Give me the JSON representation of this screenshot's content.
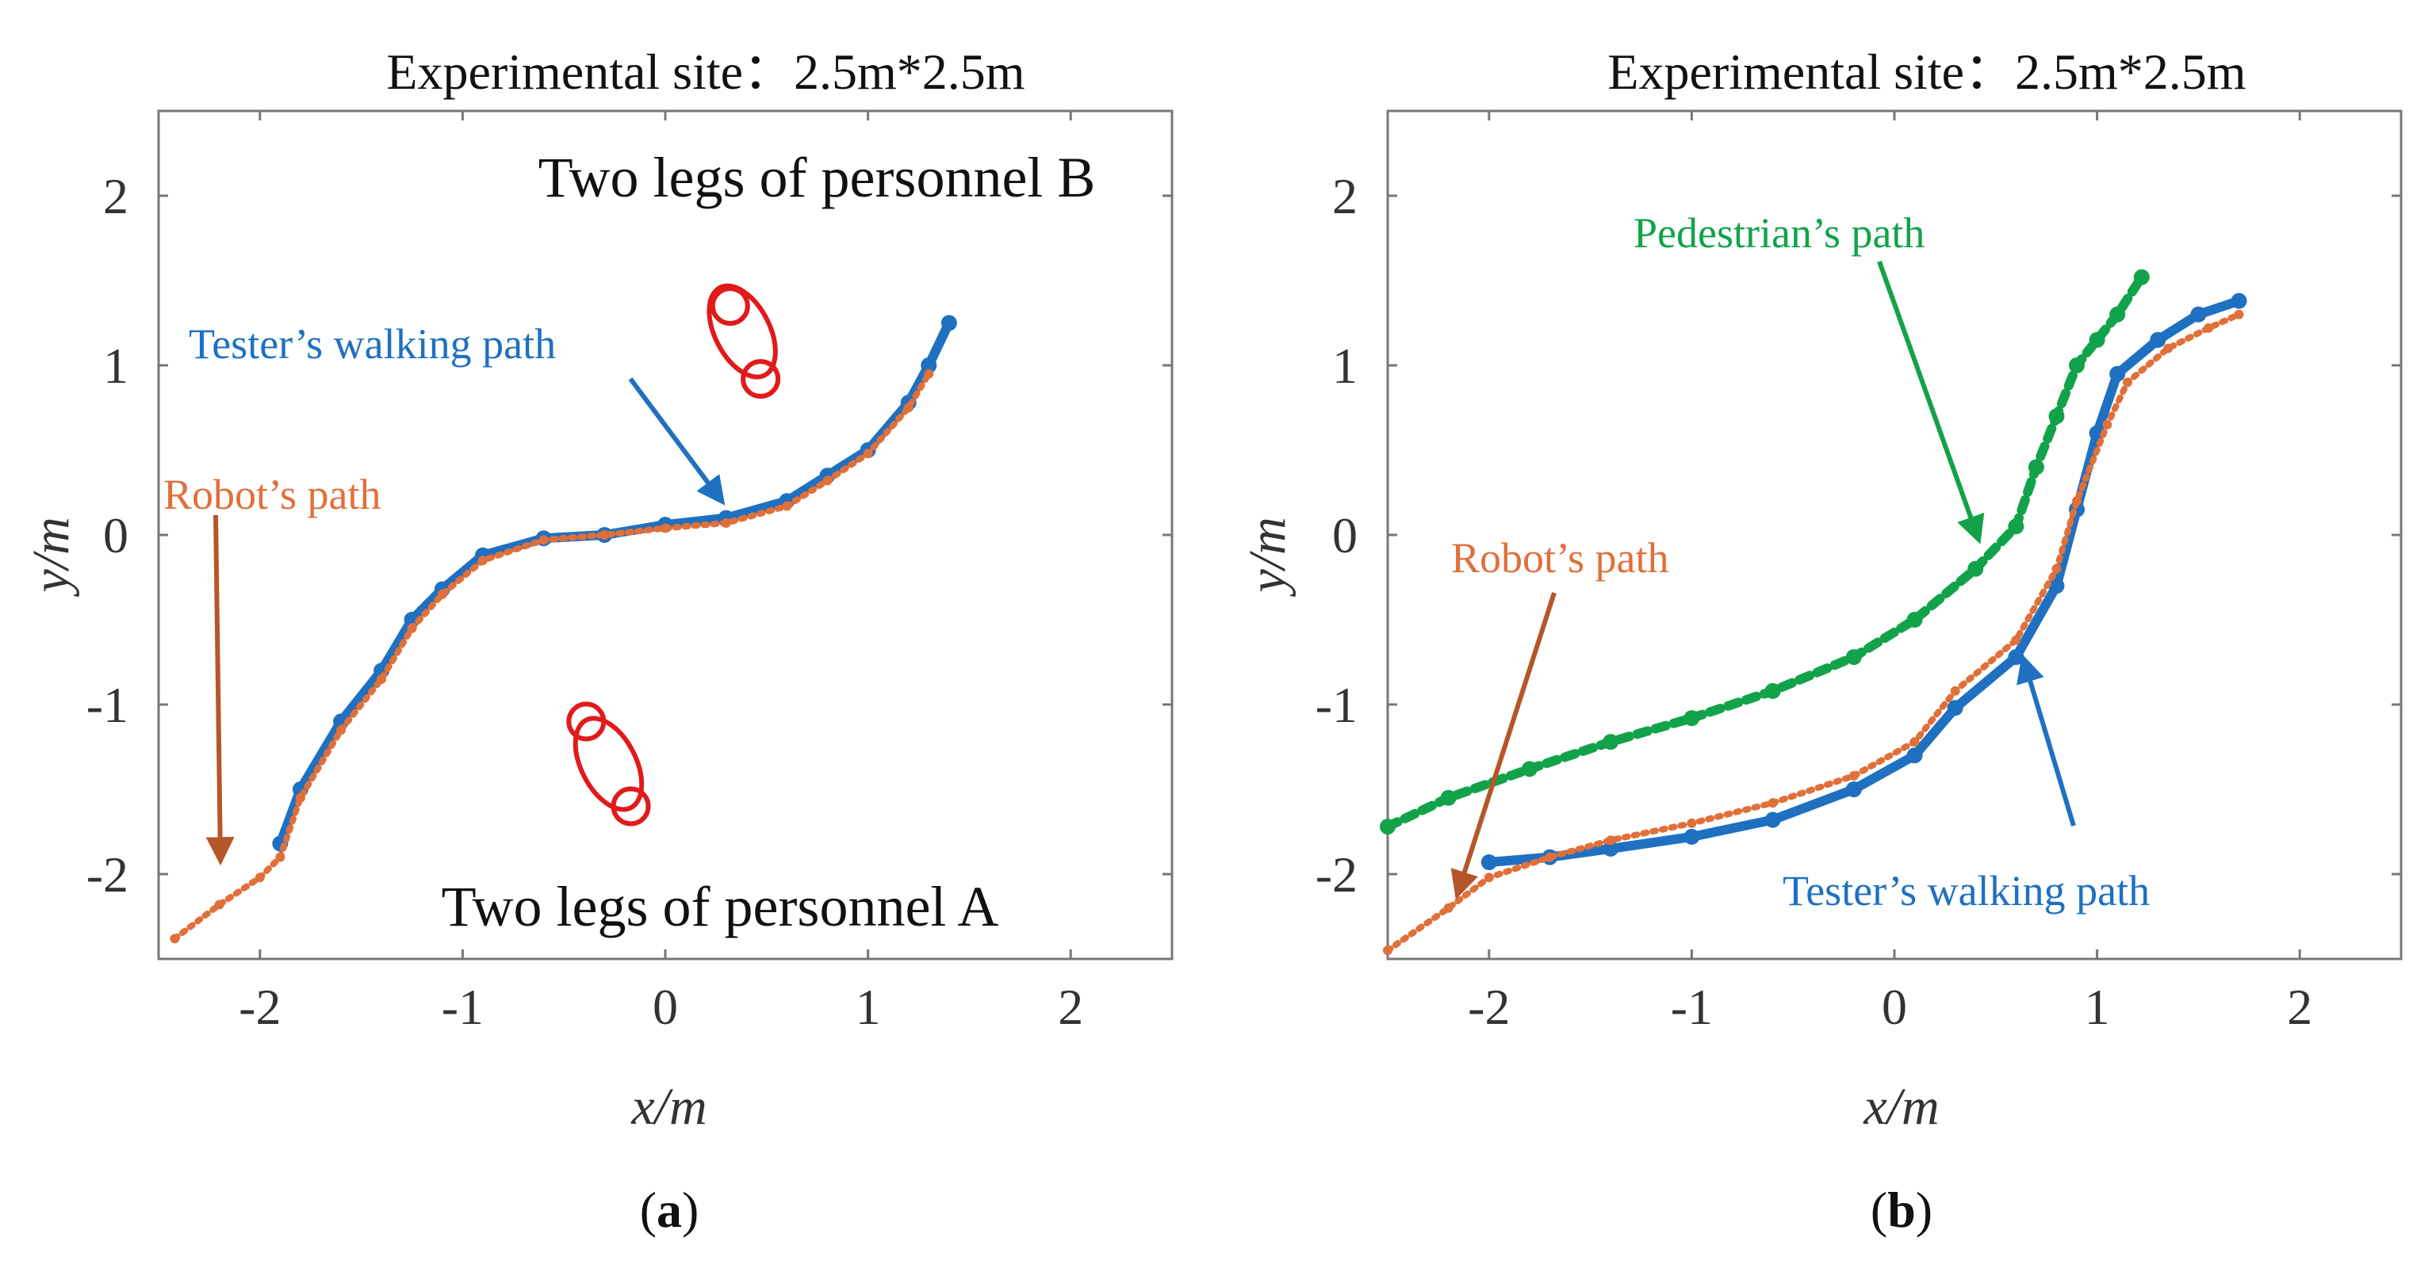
{
  "colors": {
    "tester": "#1f70c1",
    "robot": "#e0703a",
    "pedestrian": "#12a34a",
    "obstacle": "#e11a1a",
    "arrow_brown": "#b5562a",
    "arrow_blue": "#1f70c1",
    "arrow_green": "#12a34a"
  },
  "chart_data": [
    {
      "type": "scatter",
      "panel": "a",
      "panel_label": {
        "open": "(",
        "letter": "a",
        "close": ")"
      },
      "title": "Experimental site：2.5m*2.5m",
      "xlabel": "x/m",
      "ylabel": "y/m",
      "xlim": [
        -2.5,
        2.5
      ],
      "ylim": [
        -2.5,
        2.5
      ],
      "xticks": [
        -2,
        -1,
        0,
        1,
        2
      ],
      "yticks": [
        -2,
        -1,
        0,
        1,
        2
      ],
      "xtick_labels": [
        "-2",
        "-1",
        "0",
        "1",
        "2"
      ],
      "ytick_labels": [
        "-2",
        "-1",
        "0",
        "1",
        "2"
      ],
      "series": [
        {
          "name": "Tester's walking path",
          "color": "#1f70c1",
          "points": [
            [
              -1.9,
              -1.82
            ],
            [
              -1.8,
              -1.5
            ],
            [
              -1.6,
              -1.1
            ],
            [
              -1.4,
              -0.8
            ],
            [
              -1.25,
              -0.5
            ],
            [
              -1.1,
              -0.32
            ],
            [
              -0.9,
              -0.12
            ],
            [
              -0.6,
              -0.02
            ],
            [
              -0.3,
              0.0
            ],
            [
              0.0,
              0.06
            ],
            [
              0.3,
              0.1
            ],
            [
              0.6,
              0.2
            ],
            [
              0.8,
              0.35
            ],
            [
              1.0,
              0.5
            ],
            [
              1.2,
              0.78
            ],
            [
              1.3,
              1.0
            ],
            [
              1.4,
              1.25
            ]
          ]
        },
        {
          "name": "Robot's path",
          "color": "#e0703a",
          "points": [
            [
              -2.42,
              -2.38
            ],
            [
              -2.2,
              -2.18
            ],
            [
              -2.0,
              -2.02
            ],
            [
              -1.9,
              -1.9
            ],
            [
              -1.8,
              -1.55
            ],
            [
              -1.6,
              -1.15
            ],
            [
              -1.4,
              -0.85
            ],
            [
              -1.25,
              -0.55
            ],
            [
              -1.1,
              -0.35
            ],
            [
              -0.9,
              -0.15
            ],
            [
              -0.6,
              -0.03
            ],
            [
              -0.3,
              0.0
            ],
            [
              0.0,
              0.04
            ],
            [
              0.3,
              0.07
            ],
            [
              0.6,
              0.17
            ],
            [
              0.8,
              0.32
            ],
            [
              1.0,
              0.48
            ],
            [
              1.2,
              0.75
            ],
            [
              1.3,
              0.95
            ]
          ]
        }
      ],
      "obstacles": [
        {
          "center": [
            0.38,
            1.2
          ],
          "rx": 0.27,
          "ry": 0.58,
          "rotation_deg": -27,
          "legs": [
            [
              0.32,
              1.35
            ],
            [
              0.47,
              0.92
            ]
          ]
        },
        {
          "center": [
            -0.28,
            -1.35
          ],
          "rx": 0.27,
          "ry": 0.58,
          "rotation_deg": -27,
          "legs": [
            [
              -0.39,
              -1.1
            ],
            [
              -0.17,
              -1.6
            ]
          ]
        }
      ],
      "annotations": {
        "personnel_b": "Two legs of personnel B",
        "personnel_a": "Two legs of personnel A",
        "tester": "Tester’s walking path",
        "robot": "Robot’s path"
      }
    },
    {
      "type": "scatter",
      "panel": "b",
      "panel_label": {
        "open": "(",
        "letter": "b",
        "close": ")"
      },
      "title": "Experimental site：2.5m*2.5m",
      "xlabel": "x/m",
      "ylabel": "y/m",
      "xlim": [
        -2.5,
        2.5
      ],
      "ylim": [
        -2.5,
        2.5
      ],
      "xticks": [
        -2,
        -1,
        0,
        1,
        2
      ],
      "yticks": [
        -2,
        -1,
        0,
        1,
        2
      ],
      "xtick_labels": [
        "-2",
        "-1",
        "0",
        "1",
        "2"
      ],
      "ytick_labels": [
        "-2",
        "-1",
        "0",
        "1",
        "2"
      ],
      "series": [
        {
          "name": "Pedestrian's path",
          "color": "#12a34a",
          "points": [
            [
              -2.5,
              -1.72
            ],
            [
              -2.2,
              -1.55
            ],
            [
              -1.8,
              -1.38
            ],
            [
              -1.4,
              -1.22
            ],
            [
              -1.0,
              -1.08
            ],
            [
              -0.6,
              -0.92
            ],
            [
              -0.2,
              -0.72
            ],
            [
              0.1,
              -0.5
            ],
            [
              0.4,
              -0.2
            ],
            [
              0.6,
              0.05
            ],
            [
              0.7,
              0.4
            ],
            [
              0.8,
              0.7
            ],
            [
              0.9,
              1.0
            ],
            [
              1.0,
              1.15
            ],
            [
              1.1,
              1.3
            ],
            [
              1.22,
              1.52
            ]
          ]
        },
        {
          "name": "Tester's walking path",
          "color": "#1f70c1",
          "points": [
            [
              -2.0,
              -1.93
            ],
            [
              -1.7,
              -1.9
            ],
            [
              -1.4,
              -1.85
            ],
            [
              -1.0,
              -1.78
            ],
            [
              -0.6,
              -1.68
            ],
            [
              -0.2,
              -1.5
            ],
            [
              0.1,
              -1.3
            ],
            [
              0.3,
              -1.02
            ],
            [
              0.6,
              -0.72
            ],
            [
              0.8,
              -0.3
            ],
            [
              0.9,
              0.15
            ],
            [
              1.0,
              0.6
            ],
            [
              1.1,
              0.95
            ],
            [
              1.3,
              1.15
            ],
            [
              1.5,
              1.3
            ],
            [
              1.7,
              1.38
            ]
          ]
        },
        {
          "name": "Robot's path",
          "color": "#e0703a",
          "points": [
            [
              -2.5,
              -2.45
            ],
            [
              -2.2,
              -2.2
            ],
            [
              -2.0,
              -2.02
            ],
            [
              -1.7,
              -1.9
            ],
            [
              -1.4,
              -1.8
            ],
            [
              -1.0,
              -1.7
            ],
            [
              -0.6,
              -1.58
            ],
            [
              -0.2,
              -1.42
            ],
            [
              0.1,
              -1.22
            ],
            [
              0.3,
              -0.92
            ],
            [
              0.6,
              -0.62
            ],
            [
              0.8,
              -0.2
            ],
            [
              0.9,
              0.2
            ],
            [
              1.05,
              0.65
            ],
            [
              1.15,
              0.9
            ],
            [
              1.35,
              1.1
            ],
            [
              1.55,
              1.22
            ],
            [
              1.7,
              1.3
            ]
          ]
        }
      ],
      "annotations": {
        "pedestrian": "Pedestrian’s path",
        "robot": "Robot’s path",
        "tester": "Tester’s walking path"
      }
    }
  ]
}
